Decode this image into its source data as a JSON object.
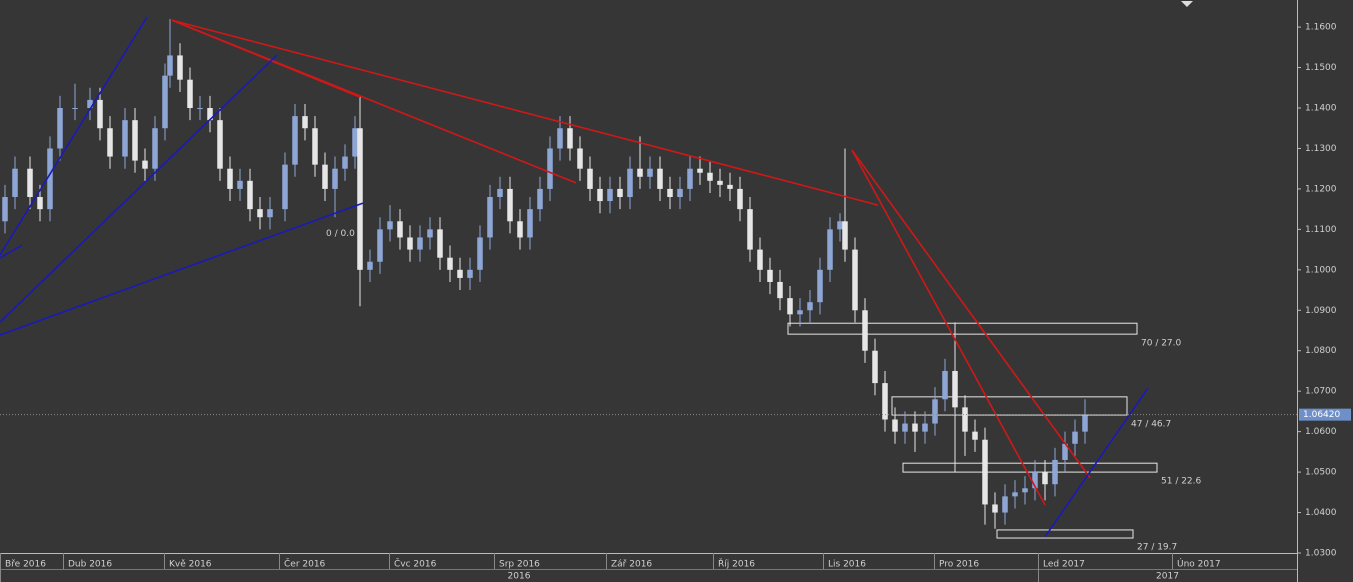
{
  "chart_data": {
    "type": "candlestick",
    "xlim": [
      0,
      259.4
    ],
    "ylim": [
      1.03,
      1.1667
    ],
    "yticks": [
      {
        "value": 1.03,
        "label": "1.0300"
      },
      {
        "value": 1.04,
        "label": "1.0400"
      },
      {
        "value": 1.05,
        "label": "1.0500"
      },
      {
        "value": 1.06,
        "label": "1.0600"
      },
      {
        "value": 1.07,
        "label": "1.0700"
      },
      {
        "value": 1.08,
        "label": "1.0800"
      },
      {
        "value": 1.09,
        "label": "1.0900"
      },
      {
        "value": 1.1,
        "label": "1.1000"
      },
      {
        "value": 1.11,
        "label": "1.1100"
      },
      {
        "value": 1.12,
        "label": "1.1200"
      },
      {
        "value": 1.13,
        "label": "1.1300"
      },
      {
        "value": 1.14,
        "label": "1.1400"
      },
      {
        "value": 1.15,
        "label": "1.1500"
      },
      {
        "value": 1.16,
        "label": "1.1600"
      }
    ],
    "xticks": [
      {
        "value": 0,
        "label": "Bře 2016"
      },
      {
        "value": 12.6,
        "label": "Dub 2016"
      },
      {
        "value": 32.8,
        "label": "Kvě 2016"
      },
      {
        "value": 55.8,
        "label": "Čer 2016"
      },
      {
        "value": 77.8,
        "label": "Čvc 2016"
      },
      {
        "value": 98.8,
        "label": "Srp 2016"
      },
      {
        "value": 121.2,
        "label": "Zář 2016"
      },
      {
        "value": 142.6,
        "label": "Říj 2016"
      },
      {
        "value": 164.6,
        "label": "Lis 2016"
      },
      {
        "value": 186.8,
        "label": "Pro 2016"
      },
      {
        "value": 207.6,
        "label": "Led 2017"
      },
      {
        "value": 234.4,
        "label": "Úno 2017"
      }
    ],
    "years": [
      {
        "from": 0,
        "to": 207.6,
        "label": "2016"
      },
      {
        "from": 207.6,
        "to": 259.4,
        "label": "2017"
      }
    ],
    "up_color": "#8ea6d6",
    "down_color": "#e6e6e6",
    "x": [
      1,
      3,
      6,
      8,
      10,
      12,
      15,
      18,
      20,
      22,
      25,
      27,
      29,
      31,
      33,
      34,
      36,
      38,
      40,
      42,
      44,
      46,
      48,
      50,
      52,
      54,
      57,
      59,
      61,
      63,
      65,
      67,
      69,
      71,
      72,
      74,
      76,
      78,
      80,
      82,
      84,
      86,
      88,
      90,
      92,
      94,
      96,
      98,
      100,
      102,
      104,
      106,
      108,
      110,
      112,
      114,
      116,
      118,
      120,
      122,
      124,
      126,
      128,
      130,
      132,
      134,
      136,
      138,
      140,
      142,
      144,
      146,
      148,
      150,
      152,
      154,
      156,
      158,
      160,
      162,
      164,
      166,
      168,
      169,
      171,
      173,
      175,
      177,
      179,
      181,
      183,
      185,
      187,
      189,
      191,
      193,
      195,
      197,
      199,
      201,
      203,
      205,
      207,
      209,
      211,
      213,
      215,
      217
    ],
    "open": [
      1.112,
      1.118,
      1.125,
      1.118,
      1.115,
      1.13,
      1.14,
      1.14,
      1.142,
      1.135,
      1.128,
      1.137,
      1.127,
      1.125,
      1.135,
      1.148,
      1.153,
      1.147,
      1.14,
      1.14,
      1.137,
      1.125,
      1.12,
      1.122,
      1.115,
      1.113,
      1.115,
      1.126,
      1.138,
      1.135,
      1.126,
      1.12,
      1.125,
      1.128,
      1.135,
      1.1,
      1.102,
      1.11,
      1.112,
      1.108,
      1.105,
      1.108,
      1.11,
      1.103,
      1.1,
      1.098,
      1.1,
      1.108,
      1.118,
      1.12,
      1.112,
      1.108,
      1.115,
      1.12,
      1.13,
      1.135,
      1.13,
      1.125,
      1.12,
      1.117,
      1.12,
      1.118,
      1.125,
      1.123,
      1.125,
      1.12,
      1.118,
      1.12,
      1.125,
      1.124,
      1.122,
      1.121,
      1.12,
      1.115,
      1.105,
      1.1,
      1.097,
      1.093,
      1.089,
      1.09,
      1.092,
      1.1,
      1.11,
      1.112,
      1.105,
      1.09,
      1.08,
      1.072,
      1.063,
      1.06,
      1.062,
      1.06,
      1.062,
      1.068,
      1.075,
      1.066,
      1.06,
      1.058,
      1.042,
      1.04,
      1.044,
      1.045,
      1.046,
      1.05,
      1.047,
      1.053,
      1.057,
      1.06
    ],
    "high": [
      1.121,
      1.128,
      1.128,
      1.121,
      1.133,
      1.143,
      1.146,
      1.145,
      1.145,
      1.138,
      1.14,
      1.14,
      1.13,
      1.138,
      1.151,
      1.162,
      1.156,
      1.15,
      1.143,
      1.143,
      1.14,
      1.128,
      1.125,
      1.125,
      1.118,
      1.118,
      1.129,
      1.141,
      1.141,
      1.138,
      1.129,
      1.128,
      1.131,
      1.138,
      1.143,
      1.105,
      1.113,
      1.116,
      1.115,
      1.111,
      1.111,
      1.113,
      1.113,
      1.106,
      1.103,
      1.103,
      1.111,
      1.121,
      1.123,
      1.123,
      1.115,
      1.118,
      1.123,
      1.133,
      1.138,
      1.138,
      1.133,
      1.128,
      1.123,
      1.123,
      1.123,
      1.128,
      1.133,
      1.128,
      1.128,
      1.123,
      1.123,
      1.128,
      1.128,
      1.127,
      1.125,
      1.124,
      1.123,
      1.118,
      1.108,
      1.103,
      1.1,
      1.096,
      1.093,
      1.095,
      1.103,
      1.113,
      1.114,
      1.13,
      1.108,
      1.093,
      1.083,
      1.075,
      1.066,
      1.065,
      1.065,
      1.065,
      1.071,
      1.078,
      1.087,
      1.069,
      1.063,
      1.061,
      1.045,
      1.047,
      1.048,
      1.049,
      1.053,
      1.053,
      1.056,
      1.06,
      1.063,
      1.068
    ],
    "low": [
      1.109,
      1.115,
      1.115,
      1.112,
      1.112,
      1.127,
      1.137,
      1.137,
      1.132,
      1.125,
      1.125,
      1.124,
      1.122,
      1.122,
      1.132,
      1.145,
      1.144,
      1.137,
      1.137,
      1.134,
      1.122,
      1.117,
      1.117,
      1.112,
      1.11,
      1.11,
      1.112,
      1.123,
      1.132,
      1.123,
      1.117,
      1.113,
      1.122,
      1.125,
      1.091,
      1.097,
      1.099,
      1.107,
      1.105,
      1.102,
      1.102,
      1.105,
      1.1,
      1.097,
      1.095,
      1.095,
      1.097,
      1.105,
      1.115,
      1.109,
      1.105,
      1.105,
      1.112,
      1.117,
      1.127,
      1.127,
      1.122,
      1.117,
      1.114,
      1.114,
      1.115,
      1.115,
      1.12,
      1.12,
      1.117,
      1.115,
      1.115,
      1.117,
      1.121,
      1.119,
      1.118,
      1.117,
      1.112,
      1.102,
      1.097,
      1.094,
      1.09,
      1.086,
      1.086,
      1.087,
      1.089,
      1.097,
      1.107,
      1.102,
      1.087,
      1.077,
      1.069,
      1.06,
      1.057,
      1.057,
      1.055,
      1.057,
      1.059,
      1.065,
      1.05,
      1.054,
      1.055,
      1.037,
      1.036,
      1.037,
      1.041,
      1.042,
      1.043,
      1.043,
      1.044,
      1.05,
      1.054,
      1.057
    ],
    "close": [
      1.118,
      1.125,
      1.118,
      1.115,
      1.13,
      1.14,
      1.14,
      1.142,
      1.135,
      1.128,
      1.137,
      1.127,
      1.125,
      1.135,
      1.148,
      1.153,
      1.147,
      1.14,
      1.14,
      1.137,
      1.125,
      1.12,
      1.122,
      1.115,
      1.113,
      1.115,
      1.126,
      1.138,
      1.135,
      1.126,
      1.12,
      1.125,
      1.128,
      1.135,
      1.1,
      1.102,
      1.11,
      1.112,
      1.108,
      1.105,
      1.108,
      1.11,
      1.103,
      1.1,
      1.098,
      1.1,
      1.108,
      1.118,
      1.12,
      1.112,
      1.108,
      1.115,
      1.12,
      1.13,
      1.135,
      1.13,
      1.125,
      1.12,
      1.117,
      1.12,
      1.118,
      1.125,
      1.123,
      1.125,
      1.12,
      1.118,
      1.12,
      1.125,
      1.124,
      1.122,
      1.121,
      1.12,
      1.115,
      1.105,
      1.1,
      1.097,
      1.093,
      1.089,
      1.09,
      1.092,
      1.1,
      1.11,
      1.112,
      1.105,
      1.09,
      1.08,
      1.072,
      1.063,
      1.06,
      1.062,
      1.06,
      1.062,
      1.068,
      1.075,
      1.066,
      1.06,
      1.058,
      1.042,
      1.04,
      1.044,
      1.045,
      1.046,
      1.05,
      1.047,
      1.053,
      1.057,
      1.06,
      1.064
    ],
    "last_price": {
      "value": 1.0642,
      "label": "1.06420"
    },
    "trendlines": [
      {
        "color": "#d01818",
        "x": [
          34.4,
          175.6
        ],
        "y": [
          1.1617,
          1.116
        ]
      },
      {
        "color": "#d01818",
        "x": [
          34.4,
          115.2
        ],
        "y": [
          1.1617,
          1.1215
        ]
      },
      {
        "color": "#d01818",
        "x": [
          34.4,
          72
        ],
        "y": [
          1.1617,
          1.1427
        ]
      },
      {
        "color": "#d01818",
        "x": [
          170.4,
          218
        ],
        "y": [
          1.1296,
          1.0486
        ]
      },
      {
        "color": "#d01818",
        "x": [
          170.4,
          209
        ],
        "y": [
          1.1296,
          1.0419
        ]
      },
      {
        "color": "#1a1ab8",
        "x": [
          0,
          29.4
        ],
        "y": [
          1.1037,
          1.1625
        ]
      },
      {
        "color": "#1a1ab8",
        "x": [
          0,
          55.4
        ],
        "y": [
          1.0871,
          1.1531
        ]
      },
      {
        "color": "#1a1ab8",
        "x": [
          0,
          72.6
        ],
        "y": [
          1.0839,
          1.1165
        ]
      },
      {
        "color": "#1a1ab8",
        "x": [
          0,
          4.4
        ],
        "y": [
          1.1029,
          1.1061
        ]
      },
      {
        "color": "#1a1ab8",
        "x": [
          209,
          229.6
        ],
        "y": [
          1.034,
          1.0708
        ]
      }
    ],
    "zones": [
      {
        "x": [
          157.6,
          227.4
        ],
        "y": [
          1.0841,
          1.0868
        ],
        "label": "70 / 27.0"
      },
      {
        "x": [
          178.4,
          225.4
        ],
        "y": [
          1.0641,
          1.0686
        ],
        "label": "47 / 46.7"
      },
      {
        "x": [
          180.6,
          231.4
        ],
        "y": [
          1.05,
          1.0522
        ],
        "label": "51 / 22.6"
      },
      {
        "x": [
          199.4,
          226.6
        ],
        "y": [
          1.0337,
          1.0357
        ],
        "label": "27 / 19.7"
      }
    ],
    "annotations": [
      {
        "text": "0 / 0.0",
        "x": 65.2,
        "y": 1.109
      }
    ]
  }
}
